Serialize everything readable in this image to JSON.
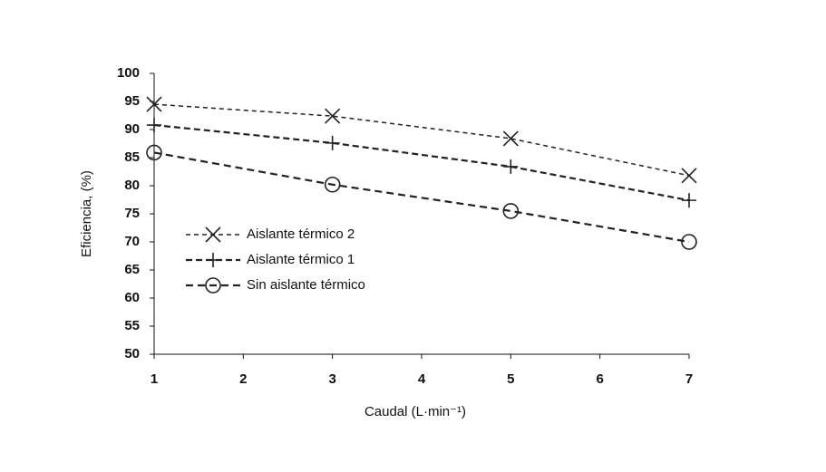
{
  "chart_data": {
    "type": "line",
    "x_label": "Caudal (L·min⁻¹)",
    "y_label": "Eficiencia, (%)",
    "x": [
      1,
      3,
      5,
      7
    ],
    "series": [
      {
        "name": "Aislante térmico 2",
        "color": "#222222",
        "marker": "x",
        "values": [
          94.5,
          92.4,
          88.4,
          81.8
        ]
      },
      {
        "name": "Aislante térmico 1",
        "color": "#222222",
        "marker": "+",
        "values": [
          90.8,
          87.6,
          83.4,
          77.4
        ]
      },
      {
        "name": "Sin aislante térmico",
        "color": "#222222",
        "marker": "o",
        "values": [
          85.9,
          80.2,
          75.5,
          70.0
        ]
      }
    ],
    "xlim": [
      1,
      7
    ],
    "xticks": [
      1,
      2,
      3,
      4,
      5,
      6,
      7
    ],
    "ylim": [
      50,
      100
    ],
    "yticks": [
      50,
      55,
      60,
      65,
      70,
      75,
      80,
      85,
      90,
      95,
      100
    ],
    "legend": "left"
  }
}
